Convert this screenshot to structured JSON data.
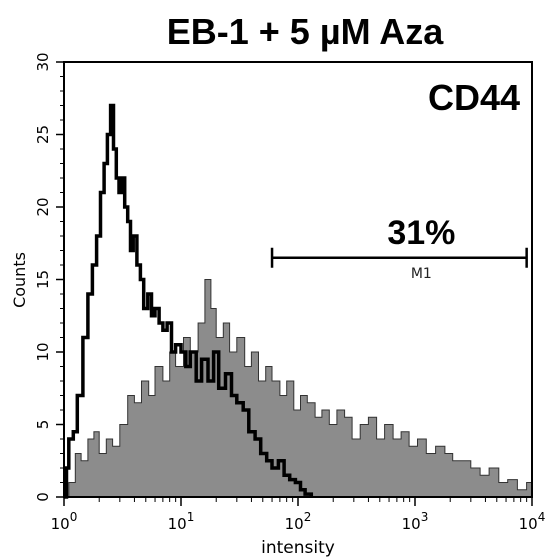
{
  "chart_data": {
    "type": "area",
    "title": "EB-1 + 5 µM Aza",
    "marker_label": "CD44",
    "xlabel": "intensity",
    "ylabel": "Counts",
    "x_scale": "log",
    "xlim": [
      1,
      10000
    ],
    "ylim": [
      0,
      30
    ],
    "x_tick_labels": [
      {
        "base": "10",
        "exp": "0"
      },
      {
        "base": "10",
        "exp": "1"
      },
      {
        "base": "10",
        "exp": "2"
      },
      {
        "base": "10",
        "exp": "3"
      },
      {
        "base": "10",
        "exp": "4"
      }
    ],
    "y_ticks": [
      "0",
      "5",
      "10",
      "15",
      "20",
      "25",
      "30"
    ],
    "gate": {
      "label": "M1",
      "percent": "31%",
      "x_start": 60,
      "x_end": 9000,
      "y": 16.5
    },
    "series": [
      {
        "style": "filled gray",
        "color": "#8c8c8c",
        "x": [
          1.0,
          1.1,
          1.25,
          1.4,
          1.6,
          1.8,
          2.0,
          2.3,
          2.6,
          3.0,
          3.5,
          4.0,
          4.6,
          5.3,
          6.0,
          7.0,
          8.0,
          9.0,
          10.5,
          12.0,
          14.0,
          16.0,
          18.0,
          20.0,
          23.0,
          26.0,
          30.0,
          35.0,
          40.0,
          46.0,
          53.0,
          60.0,
          70.0,
          80.0,
          92.0,
          105.0,
          120.0,
          140.0,
          160.0,
          185.0,
          215.0,
          250.0,
          290.0,
          340.0,
          400.0,
          470.0,
          550.0,
          650.0,
          760.0,
          890.0,
          1050.0,
          1250.0,
          1500.0,
          1800.0,
          2100.0,
          2500.0,
          3000.0,
          3600.0,
          4300.0,
          5200.0,
          6200.0,
          7500.0,
          9000.0,
          10000.0
        ],
        "values": [
          0,
          1,
          3,
          2.5,
          4,
          4.5,
          3,
          4,
          3.5,
          5,
          7,
          6.5,
          8,
          7,
          9,
          8,
          10,
          9,
          11,
          10,
          12,
          15,
          13,
          11,
          12,
          10,
          11,
          9,
          10,
          8,
          9,
          8,
          7,
          8,
          6,
          7,
          6.5,
          5.5,
          6,
          5,
          6,
          5.5,
          4,
          5,
          5.5,
          4,
          5,
          4,
          4.5,
          3.5,
          4,
          3,
          3.5,
          3,
          2.5,
          2.5,
          2,
          1.5,
          2,
          1,
          1.2,
          0.5,
          1,
          0
        ]
      },
      {
        "style": "black outline",
        "color": "#000000",
        "x": [
          1.0,
          1.05,
          1.1,
          1.2,
          1.3,
          1.45,
          1.6,
          1.75,
          1.9,
          2.05,
          2.2,
          2.35,
          2.5,
          2.65,
          2.8,
          2.95,
          3.1,
          3.3,
          3.5,
          3.7,
          3.9,
          4.2,
          4.5,
          4.8,
          5.2,
          5.6,
          6.0,
          6.5,
          7.0,
          7.6,
          8.3,
          9.0,
          10.0,
          11.0,
          12.0,
          13.5,
          15.0,
          17.0,
          19.0,
          21.0,
          24.0,
          27.0,
          30.0,
          34.0,
          38.0,
          43.0,
          48.0,
          54.0,
          60.0,
          68.0,
          76.0,
          85.0,
          95.0,
          105.0,
          115.0,
          130.0
        ],
        "values": [
          0,
          2,
          4,
          4.5,
          7,
          11,
          14,
          16,
          18,
          21,
          23,
          25,
          27,
          24,
          22,
          21,
          22,
          20,
          19,
          17,
          18,
          16,
          15,
          13,
          14,
          12.5,
          13,
          12,
          11.5,
          12,
          10,
          10.5,
          10,
          9,
          10,
          8,
          9.5,
          8,
          10,
          7.5,
          8.5,
          7,
          6.5,
          6,
          4.5,
          4,
          3,
          2.5,
          2,
          2.5,
          1.5,
          1.2,
          1,
          0.5,
          0.2,
          0
        ]
      }
    ]
  }
}
